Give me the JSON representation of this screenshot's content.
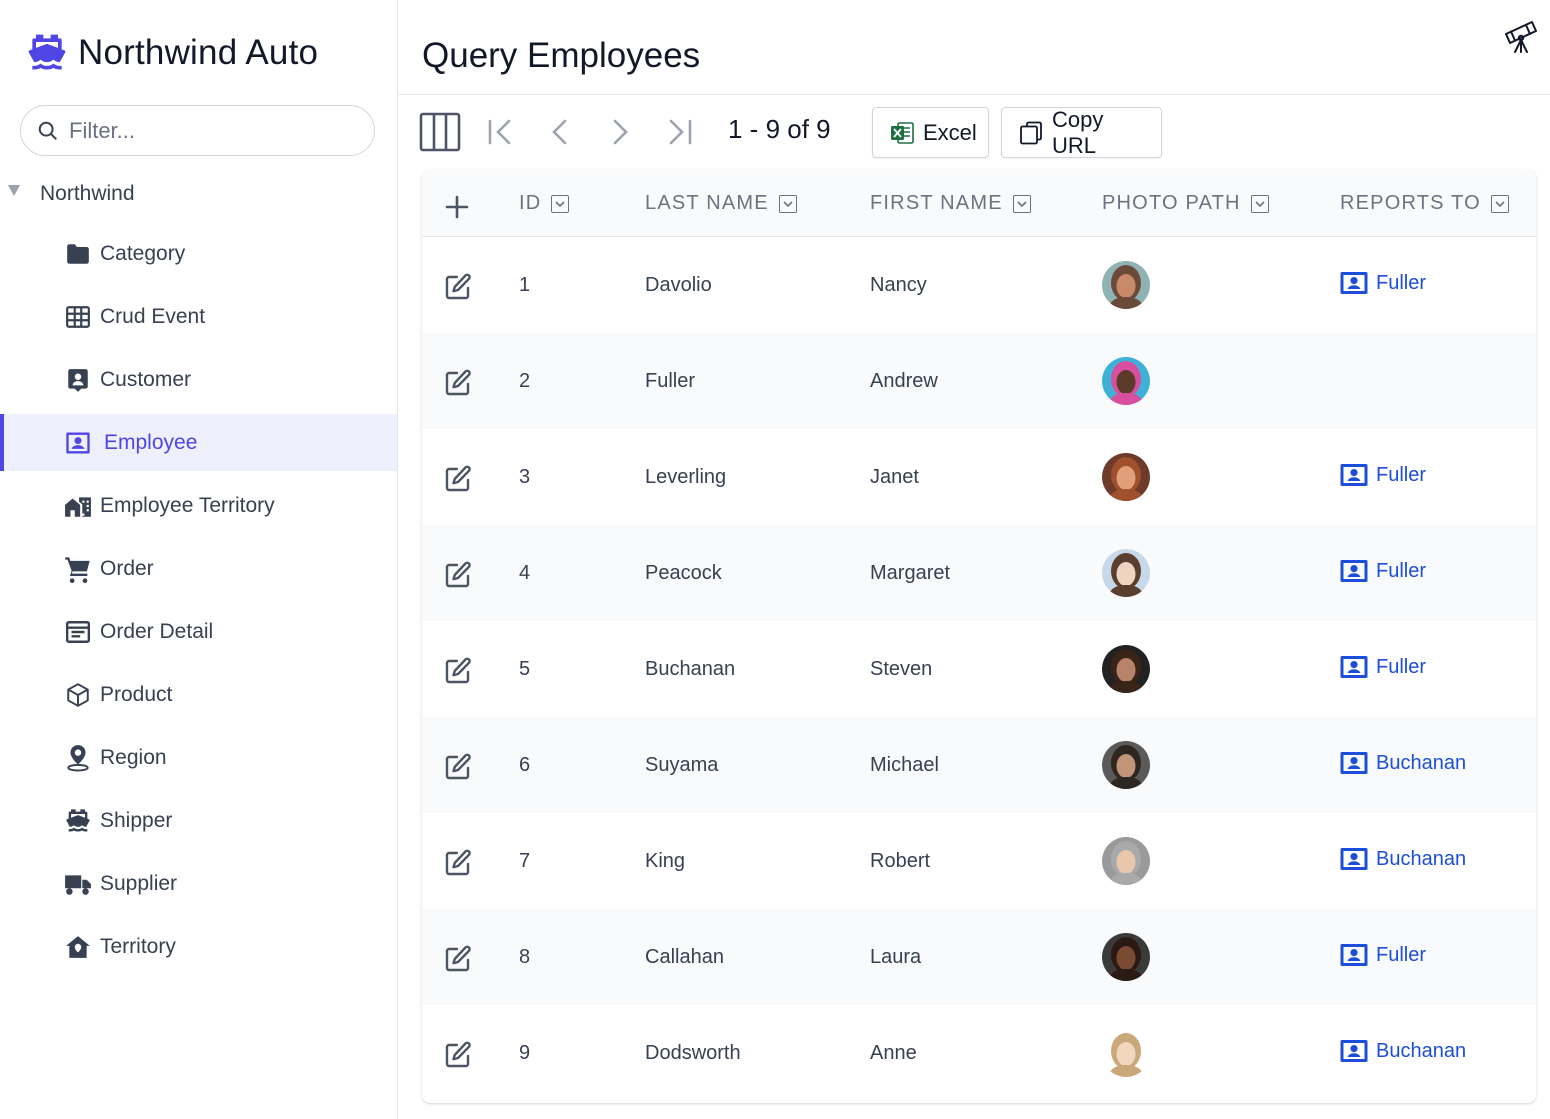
{
  "app": {
    "title": "Northwind Auto",
    "logo_icon": "ship-icon"
  },
  "sidebar": {
    "filter_placeholder": "Filter...",
    "root": "Northwind",
    "items": [
      {
        "label": "Category",
        "icon": "folder-icon"
      },
      {
        "label": "Crud Event",
        "icon": "table-icon"
      },
      {
        "label": "Customer",
        "icon": "contact-card-icon"
      },
      {
        "label": "Employee",
        "icon": "employee-badge-icon",
        "active": true
      },
      {
        "label": "Employee Territory",
        "icon": "building-icon"
      },
      {
        "label": "Order",
        "icon": "cart-icon"
      },
      {
        "label": "Order Detail",
        "icon": "document-lines-icon"
      },
      {
        "label": "Product",
        "icon": "box-icon"
      },
      {
        "label": "Region",
        "icon": "map-pin-icon"
      },
      {
        "label": "Shipper",
        "icon": "ship-icon"
      },
      {
        "label": "Supplier",
        "icon": "truck-icon"
      },
      {
        "label": "Territory",
        "icon": "home-pin-icon"
      }
    ]
  },
  "main": {
    "title": "Query Employees",
    "paging": "1 - 9 of 9",
    "excel_label": "Excel",
    "copy_url_label": "Copy URL"
  },
  "table": {
    "columns": [
      "ID",
      "LAST NAME",
      "FIRST NAME",
      "PHOTO PATH",
      "REPORTS TO"
    ],
    "rows": [
      {
        "id": "1",
        "last": "Davolio",
        "first": "Nancy",
        "reports_to": "Fuller",
        "photo_colors": [
          "#c98a6a",
          "#6b4a3a",
          "#8fb3b5"
        ]
      },
      {
        "id": "2",
        "last": "Fuller",
        "first": "Andrew",
        "reports_to": "",
        "photo_colors": [
          "#5a3a28",
          "#d94f9f",
          "#3fb1d6"
        ]
      },
      {
        "id": "3",
        "last": "Leverling",
        "first": "Janet",
        "reports_to": "Fuller",
        "photo_colors": [
          "#e2a07a",
          "#a0502c",
          "#6e3b2a"
        ]
      },
      {
        "id": "4",
        "last": "Peacock",
        "first": "Margaret",
        "reports_to": "Fuller",
        "photo_colors": [
          "#f0d4c2",
          "#5a3e2e",
          "#c7d9e8"
        ]
      },
      {
        "id": "5",
        "last": "Buchanan",
        "first": "Steven",
        "reports_to": "Fuller",
        "photo_colors": [
          "#b8826b",
          "#3a2418",
          "#222222"
        ]
      },
      {
        "id": "6",
        "last": "Suyama",
        "first": "Michael",
        "reports_to": "Buchanan",
        "photo_colors": [
          "#c29478",
          "#2e2620",
          "#5a5a5a"
        ]
      },
      {
        "id": "7",
        "last": "King",
        "first": "Robert",
        "reports_to": "Buchanan",
        "photo_colors": [
          "#e8c7ad",
          "#a9a9a9",
          "#9a9a9a"
        ]
      },
      {
        "id": "8",
        "last": "Callahan",
        "first": "Laura",
        "reports_to": "Fuller",
        "photo_colors": [
          "#7a4a32",
          "#2a1a14",
          "#3a3a3a"
        ]
      },
      {
        "id": "9",
        "last": "Dodsworth",
        "first": "Anne",
        "reports_to": "Buchanan",
        "photo_colors": [
          "#f2d6be",
          "#c9a97a",
          "#ffffff"
        ]
      }
    ]
  },
  "colors": {
    "accent": "#4f46e5",
    "link": "#1d4ed8",
    "active_bg": "#eef0fd",
    "excel_green": "#1d6f42"
  }
}
